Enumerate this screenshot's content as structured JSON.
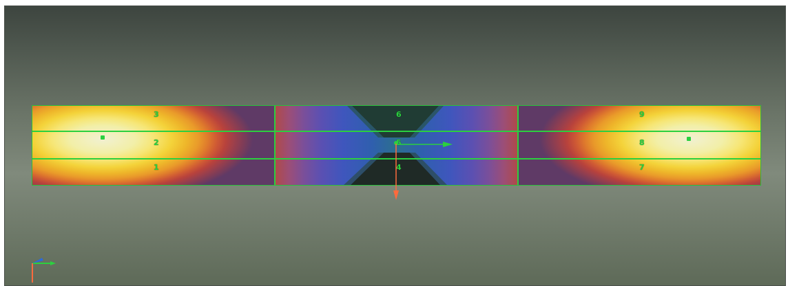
{
  "element_labels": {
    "e1": "1",
    "e2": "2",
    "e3": "3",
    "e4": "4",
    "e5": "5",
    "e6": "6",
    "e7": "7",
    "e8": "8",
    "e9": "9"
  },
  "colors": {
    "mesh": "#2bd03f",
    "axis_x": "#2bd03f",
    "axis_y": "#ff6a3d",
    "axis_z": "#2d6ad8",
    "contour_high": "#f1f0d2",
    "contour_low": "#2c6f8e"
  }
}
